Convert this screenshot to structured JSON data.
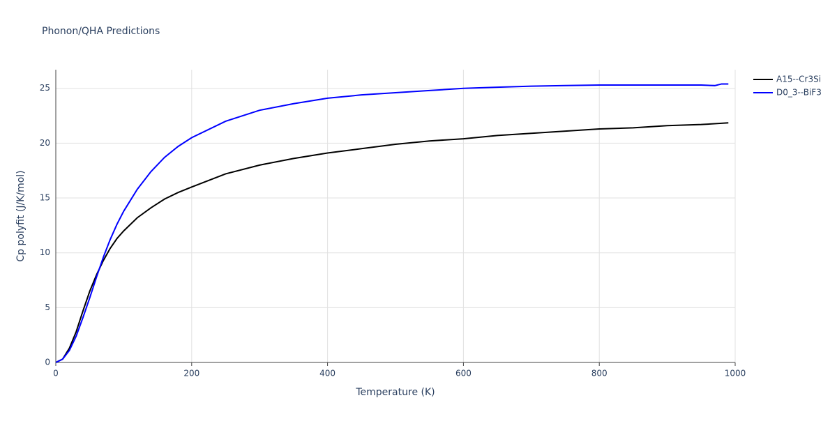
{
  "chart_data": {
    "type": "line",
    "title": "Phonon/QHA Predictions",
    "x_label": "Temperature (K)",
    "y_label": "Cp polyfit (J/K/mol)",
    "xlim": [
      0,
      1000
    ],
    "xticks": [
      0,
      200,
      400,
      600,
      800,
      1000
    ],
    "ylim": [
      0,
      26.7
    ],
    "yticks": [
      0,
      5,
      10,
      15,
      20,
      25
    ],
    "grid": true,
    "series": [
      {
        "name": "A15--Cr3Si",
        "color": "#000000",
        "x": [
          0,
          10,
          20,
          30,
          40,
          50,
          60,
          70,
          80,
          90,
          100,
          120,
          140,
          160,
          180,
          200,
          250,
          300,
          350,
          400,
          450,
          500,
          550,
          600,
          650,
          700,
          750,
          800,
          850,
          900,
          950,
          990
        ],
        "values": [
          0,
          0.3,
          1.3,
          2.8,
          4.7,
          6.5,
          8.0,
          9.3,
          10.4,
          11.3,
          12.0,
          13.2,
          14.1,
          14.9,
          15.5,
          16.0,
          17.2,
          18.0,
          18.6,
          19.1,
          19.5,
          19.9,
          20.2,
          20.4,
          20.7,
          20.9,
          21.1,
          21.3,
          21.4,
          21.6,
          21.7,
          21.85
        ]
      },
      {
        "name": "D0_3--BiF3",
        "color": "#0000ff",
        "x": [
          0,
          10,
          20,
          30,
          40,
          50,
          60,
          70,
          80,
          90,
          100,
          120,
          140,
          160,
          180,
          200,
          250,
          300,
          350,
          400,
          450,
          500,
          550,
          600,
          650,
          700,
          750,
          800,
          850,
          900,
          950,
          970,
          980,
          990
        ],
        "values": [
          0,
          0.3,
          1.1,
          2.4,
          4.1,
          5.9,
          7.8,
          9.6,
          11.2,
          12.6,
          13.8,
          15.8,
          17.4,
          18.7,
          19.7,
          20.5,
          22.0,
          23.0,
          23.6,
          24.1,
          24.4,
          24.6,
          24.8,
          25.0,
          25.1,
          25.2,
          25.25,
          25.3,
          25.3,
          25.3,
          25.3,
          25.25,
          25.4,
          25.4
        ]
      }
    ]
  }
}
